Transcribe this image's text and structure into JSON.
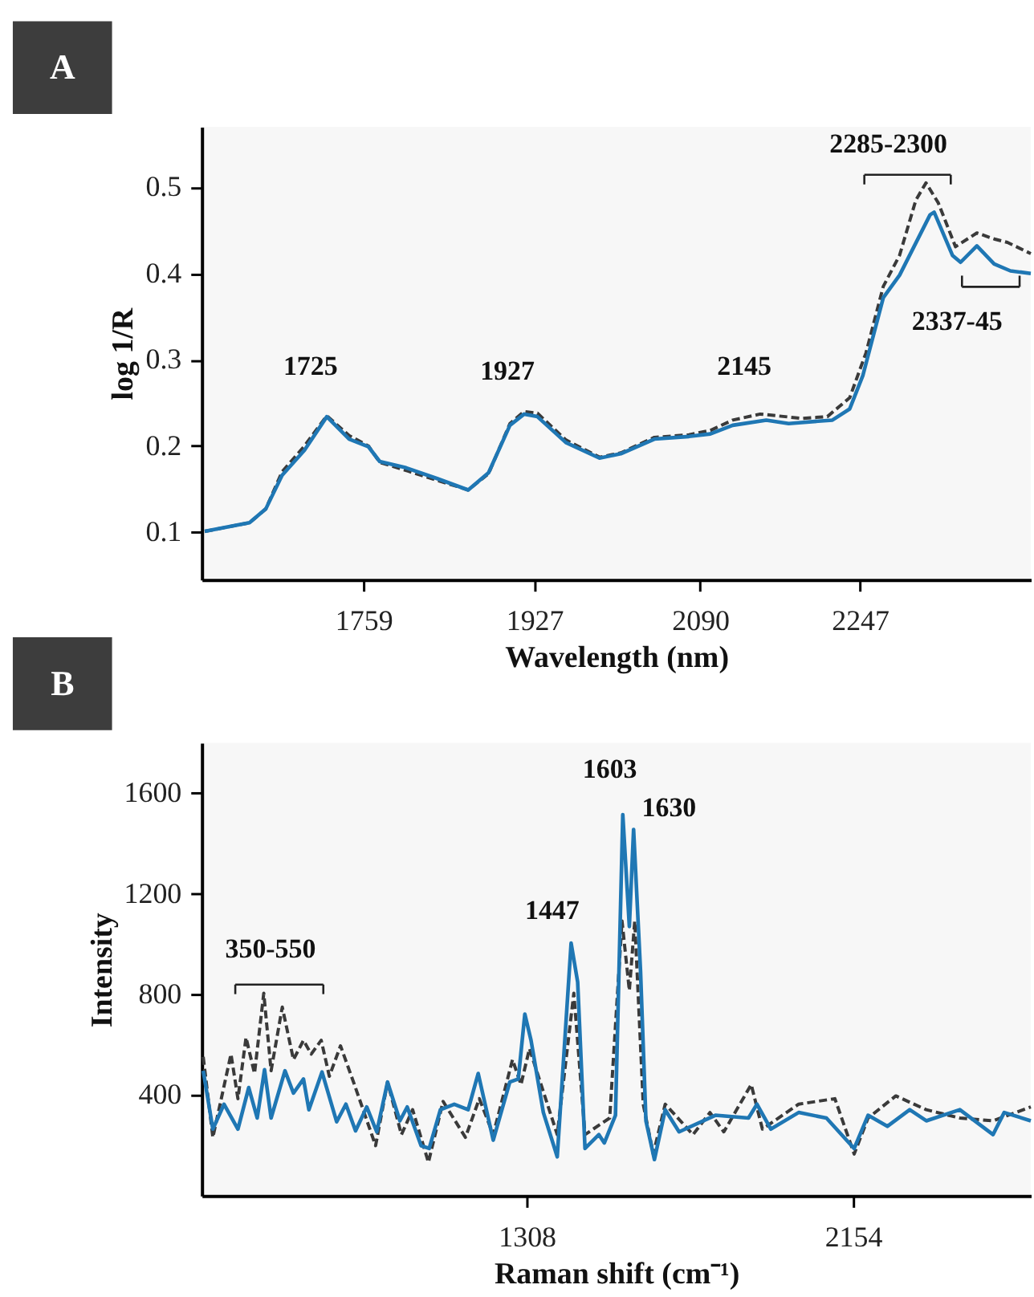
{
  "chart_data": [
    {
      "type": "line",
      "xlabel": "Wavelength (nm)",
      "ylabel": "log 1/R",
      "xlim": [
        1600,
        2415
      ],
      "ylim": [
        0.045,
        0.57
      ],
      "xticks": [
        1759,
        1927,
        2090,
        2247
      ],
      "yticks": [
        0.1,
        0.2,
        0.3,
        0.4,
        0.5
      ],
      "grid": false,
      "marker": "none",
      "annotations": [
        "A",
        "1725",
        "1927",
        "2145",
        "2285-2300",
        "2337-45"
      ],
      "series": [
        {
          "color": "#3a3a3a",
          "line_style": "dashed",
          "x": [
            1603,
            1647,
            1663,
            1679,
            1701,
            1723,
            1745,
            1764,
            1775,
            1800,
            1832,
            1862,
            1882,
            1903,
            1917,
            1930,
            1958,
            1991,
            2012,
            2045,
            2079,
            2100,
            2122,
            2149,
            2190,
            2215,
            2237,
            2253,
            2270,
            2286,
            2302,
            2312,
            2324,
            2341,
            2362,
            2379,
            2392,
            2415
          ],
          "values": [
            0.101,
            0.111,
            0.127,
            0.17,
            0.2,
            0.235,
            0.212,
            0.2,
            0.181,
            0.172,
            0.16,
            0.149,
            0.168,
            0.226,
            0.24,
            0.238,
            0.207,
            0.187,
            0.192,
            0.21,
            0.213,
            0.218,
            0.23,
            0.237,
            0.232,
            0.234,
            0.256,
            0.308,
            0.385,
            0.421,
            0.485,
            0.505,
            0.482,
            0.431,
            0.447,
            0.44,
            0.436,
            0.423
          ]
        },
        {
          "color": "#1f77b4",
          "line_style": "solid",
          "x": [
            1603,
            1647,
            1663,
            1679,
            1701,
            1723,
            1745,
            1764,
            1775,
            1800,
            1832,
            1862,
            1882,
            1903,
            1917,
            1930,
            1958,
            1991,
            2012,
            2045,
            2079,
            2100,
            2122,
            2155,
            2177,
            2220,
            2237,
            2250,
            2270,
            2286,
            2316,
            2320,
            2338,
            2346,
            2362,
            2379,
            2395,
            2415
          ],
          "values": [
            0.101,
            0.111,
            0.127,
            0.166,
            0.195,
            0.234,
            0.208,
            0.199,
            0.182,
            0.175,
            0.162,
            0.149,
            0.169,
            0.224,
            0.237,
            0.234,
            0.204,
            0.186,
            0.191,
            0.208,
            0.211,
            0.214,
            0.224,
            0.23,
            0.226,
            0.23,
            0.243,
            0.282,
            0.372,
            0.398,
            0.468,
            0.471,
            0.421,
            0.413,
            0.432,
            0.411,
            0.403,
            0.4
          ]
        }
      ]
    },
    {
      "type": "line",
      "xlabel": "Raman shift (cm⁻¹)",
      "ylabel": "Intensity",
      "xlim": [
        465,
        2615
      ],
      "ylim": [
        0,
        1800
      ],
      "xticks": [
        1308,
        2154
      ],
      "yticks": [
        400,
        800,
        1200,
        1600
      ],
      "grid": false,
      "marker": "none",
      "annotations": [
        "B",
        "350-550",
        "1447",
        "1603",
        "1630"
      ],
      "series": [
        {
          "color": "#3a3a3a",
          "line_style": "dashed",
          "x": [
            469,
            494,
            541,
            559,
            580,
            602,
            626,
            645,
            674,
            703,
            729,
            749,
            775,
            796,
            825,
            861,
            916,
            947,
            983,
            1012,
            1053,
            1091,
            1149,
            1185,
            1221,
            1271,
            1293,
            1315,
            1387,
            1430,
            1459,
            1523,
            1555,
            1574,
            1588,
            1610,
            1636,
            1667,
            1739,
            1783,
            1819,
            1890,
            1919,
            2013,
            2107,
            2157,
            2193,
            2265,
            2344,
            2431,
            2517,
            2615
          ],
          "values": [
            552,
            232,
            563,
            386,
            629,
            486,
            805,
            497,
            750,
            541,
            618,
            563,
            618,
            475,
            596,
            442,
            199,
            452,
            243,
            342,
            133,
            375,
            232,
            386,
            243,
            541,
            442,
            585,
            243,
            805,
            243,
            309,
            1092,
            816,
            1092,
            364,
            166,
            364,
            243,
            331,
            254,
            442,
            265,
            364,
            386,
            166,
            309,
            397,
            342,
            309,
            298,
            353
          ]
        },
        {
          "color": "#1f77b4",
          "line_style": "solid",
          "x": [
            469,
            494,
            523,
            559,
            587,
            609,
            628,
            645,
            681,
            703,
            729,
            743,
            777,
            815,
            839,
            864,
            893,
            919,
            947,
            979,
            998,
            1034,
            1055,
            1084,
            1120,
            1156,
            1182,
            1221,
            1264,
            1286,
            1303,
            1319,
            1351,
            1387,
            1423,
            1440,
            1459,
            1495,
            1509,
            1538,
            1557,
            1574,
            1585,
            1603,
            1617,
            1639,
            1667,
            1703,
            1797,
            1883,
            1905,
            1941,
            2013,
            2085,
            2157,
            2193,
            2243,
            2301,
            2344,
            2431,
            2517,
            2546,
            2615
          ],
          "values": [
            497,
            265,
            364,
            265,
            430,
            309,
            501,
            309,
            497,
            408,
            464,
            342,
            492,
            294,
            364,
            258,
            353,
            254,
            452,
            298,
            353,
            199,
            188,
            342,
            364,
            342,
            486,
            221,
            452,
            464,
            722,
            618,
            331,
            155,
            1004,
            849,
            188,
            243,
            210,
            320,
            1515,
            1070,
            1456,
            893,
            298,
            144,
            342,
            254,
            320,
            309,
            364,
            265,
            331,
            309,
            188,
            320,
            276,
            342,
            298,
            342,
            243,
            331,
            298
          ]
        }
      ]
    }
  ]
}
